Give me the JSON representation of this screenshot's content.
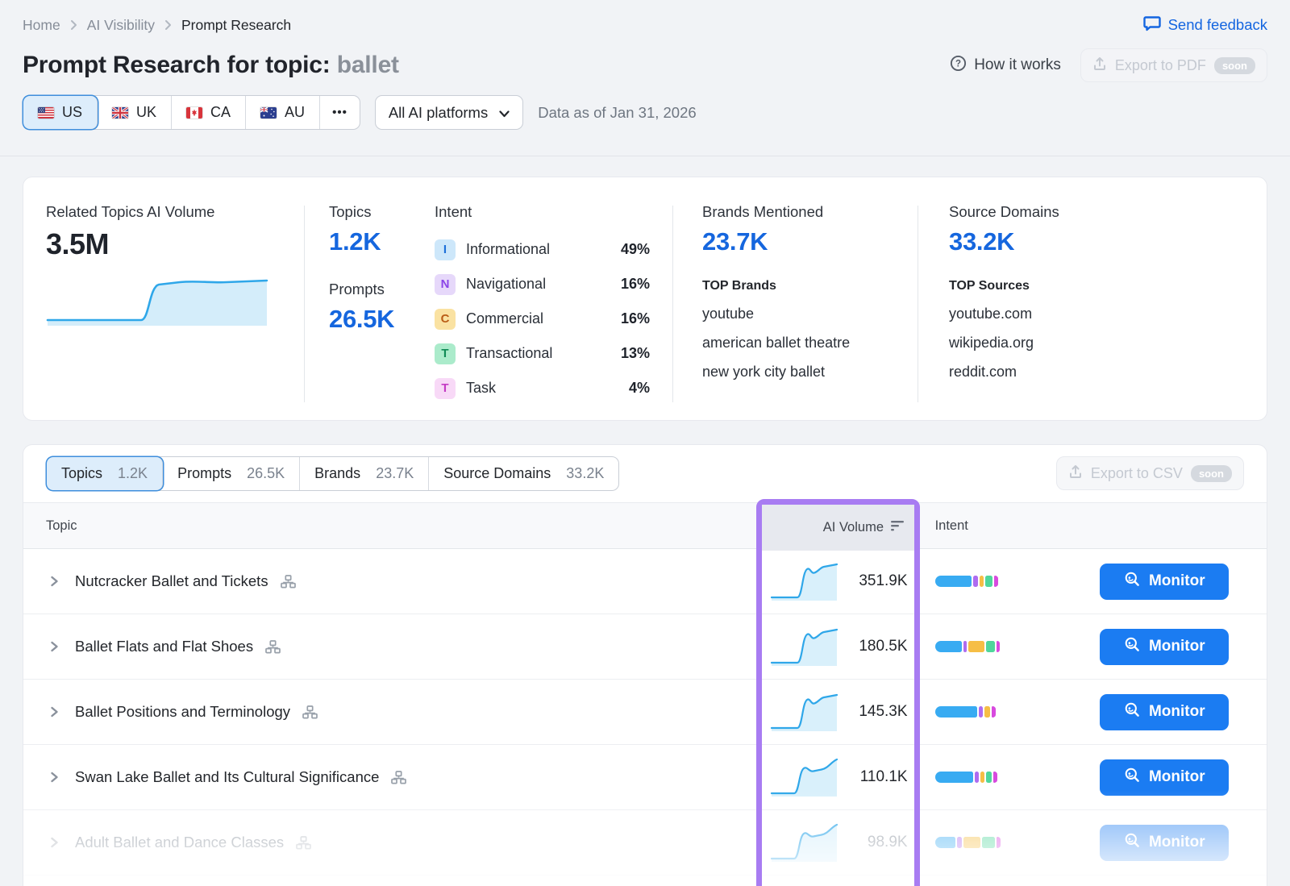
{
  "breadcrumb": {
    "items": [
      "Home",
      "AI Visibility",
      "Prompt Research"
    ]
  },
  "header": {
    "title_prefix": "Prompt Research for topic:",
    "topic": "ballet",
    "send_feedback": "Send feedback",
    "how_it_works": "How it works",
    "export_pdf": {
      "label": "Export to PDF",
      "badge": "soon"
    }
  },
  "filters": {
    "countries": [
      {
        "code": "US",
        "selected": true
      },
      {
        "code": "UK",
        "selected": false
      },
      {
        "code": "CA",
        "selected": false
      },
      {
        "code": "AU",
        "selected": false
      }
    ],
    "more": "•••",
    "platforms": "All AI platforms",
    "data_as_of": "Data as of Jan 31, 2026"
  },
  "summary": {
    "related": {
      "label": "Related Topics AI Volume",
      "value": "3.5M"
    },
    "topics": {
      "label": "Topics",
      "value": "1.2K"
    },
    "prompts": {
      "label": "Prompts",
      "value": "26.5K"
    },
    "intent": {
      "label": "Intent",
      "items": [
        {
          "key": "I",
          "label": "Informational",
          "pct": "49%",
          "fg": "#1E6FD9",
          "bg": "#CDE7FA"
        },
        {
          "key": "N",
          "label": "Navigational",
          "pct": "16%",
          "fg": "#8B45E8",
          "bg": "#E6D8FA"
        },
        {
          "key": "C",
          "label": "Commercial",
          "pct": "16%",
          "fg": "#BA5D17",
          "bg": "#FAE2A2"
        },
        {
          "key": "T",
          "label": "Transactional",
          "pct": "13%",
          "fg": "#0F8A55",
          "bg": "#ABEBCB"
        },
        {
          "key": "T",
          "label": "Task",
          "pct": "4%",
          "fg": "#C43BC4",
          "bg": "#F8D9F7"
        }
      ]
    },
    "brands": {
      "label": "Brands Mentioned",
      "value": "23.7K",
      "top_label": "TOP Brands",
      "items": [
        "youtube",
        "american ballet theatre",
        "new york city ballet"
      ]
    },
    "sources": {
      "label": "Source Domains",
      "value": "33.2K",
      "top_label": "TOP Sources",
      "items": [
        "youtube.com",
        "wikipedia.org",
        "reddit.com"
      ]
    }
  },
  "table": {
    "tabs": [
      {
        "label": "Topics",
        "count": "1.2K",
        "selected": true
      },
      {
        "label": "Prompts",
        "count": "26.5K",
        "selected": false
      },
      {
        "label": "Brands",
        "count": "23.7K",
        "selected": false
      },
      {
        "label": "Source Domains",
        "count": "33.2K",
        "selected": false
      }
    ],
    "export_csv": {
      "label": "Export to CSV",
      "badge": "soon"
    },
    "columns": {
      "topic": "Topic",
      "volume": "AI Volume",
      "intent": "Intent"
    },
    "monitor_label": "Monitor",
    "bar_colors": {
      "blue": "#38ABF2",
      "purple": "#AE6CF0",
      "yellow": "#F6BE45",
      "green": "#4FD69B",
      "magenta": "#D84ADF"
    },
    "rows": [
      {
        "topic": "Nutcracker Ballet and Tickets",
        "volume": "351.9K",
        "spark": 1,
        "faded": false,
        "bar": [
          [
            "blue",
            57
          ],
          [
            "purple",
            7
          ],
          [
            "yellow",
            7
          ],
          [
            "green",
            11
          ],
          [
            "magenta",
            6
          ]
        ]
      },
      {
        "topic": "Ballet Flats and Flat Shoes",
        "volume": "180.5K",
        "spark": 1,
        "faded": false,
        "bar": [
          [
            "blue",
            42
          ],
          [
            "purple",
            5
          ],
          [
            "yellow",
            25
          ],
          [
            "green",
            13
          ],
          [
            "magenta",
            6
          ]
        ]
      },
      {
        "topic": "Ballet Positions and Terminology",
        "volume": "145.3K",
        "spark": 1,
        "faded": false,
        "bar": [
          [
            "blue",
            64
          ],
          [
            "purple",
            6
          ],
          [
            "yellow",
            9
          ],
          [
            "magenta",
            6
          ]
        ]
      },
      {
        "topic": "Swan Lake Ballet and Its Cultural Significance",
        "volume": "110.1K",
        "spark": 2,
        "faded": false,
        "bar": [
          [
            "blue",
            59
          ],
          [
            "purple",
            6
          ],
          [
            "yellow",
            7
          ],
          [
            "green",
            9
          ],
          [
            "magenta",
            6
          ]
        ]
      },
      {
        "topic": "Adult Ballet and Dance Classes",
        "volume": "98.9K",
        "spark": 2,
        "faded": true,
        "bar": [
          [
            "blue",
            32
          ],
          [
            "purple",
            7
          ],
          [
            "yellow",
            26
          ],
          [
            "green",
            21
          ],
          [
            "magenta",
            6
          ]
        ]
      }
    ]
  }
}
